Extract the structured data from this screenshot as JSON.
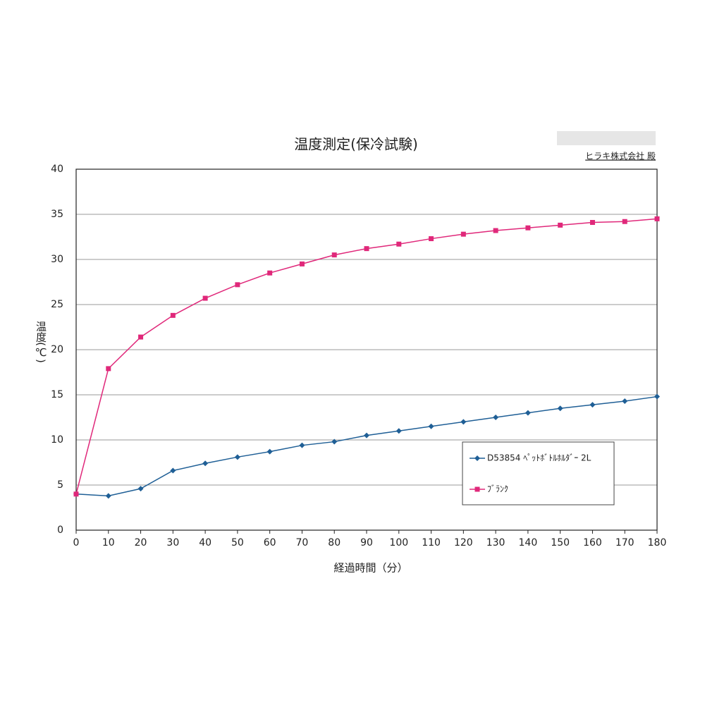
{
  "chart_data": {
    "type": "line",
    "title": "温度測定(保冷試験)",
    "note": "ヒラキ株式会社 殿",
    "x_label": "経過時間（分）",
    "y_label": "温度(℃)",
    "x": [
      0,
      10,
      20,
      30,
      40,
      50,
      60,
      70,
      80,
      90,
      100,
      110,
      120,
      130,
      140,
      150,
      160,
      170,
      180
    ],
    "series": [
      {
        "name": "D53854 ﾍﾟｯﾄﾎﾞﾄﾙﾎﾙﾀﾞｰ 2L",
        "color": "#1f5f96",
        "marker": "diamond",
        "values": [
          4.0,
          3.8,
          4.6,
          6.6,
          7.4,
          8.1,
          8.7,
          9.4,
          9.8,
          10.5,
          11.0,
          11.5,
          12.0,
          12.5,
          13.0,
          13.5,
          13.9,
          14.3,
          14.8
        ]
      },
      {
        "name": "ﾌﾞﾗﾝｸ",
        "color": "#e0287a",
        "marker": "square",
        "values": [
          4.0,
          17.9,
          21.4,
          23.8,
          25.7,
          27.2,
          28.5,
          29.5,
          30.5,
          31.2,
          31.7,
          32.3,
          32.8,
          33.2,
          33.5,
          33.8,
          34.1,
          34.2,
          34.5
        ]
      }
    ],
    "xlim": [
      0,
      180
    ],
    "xticks": [
      0,
      10,
      20,
      30,
      40,
      50,
      60,
      70,
      80,
      90,
      100,
      110,
      120,
      130,
      140,
      150,
      160,
      170,
      180
    ],
    "ylim": [
      0,
      40
    ],
    "yticks": [
      0,
      5,
      10,
      15,
      20,
      25,
      30,
      35,
      40
    ],
    "grid": true
  }
}
